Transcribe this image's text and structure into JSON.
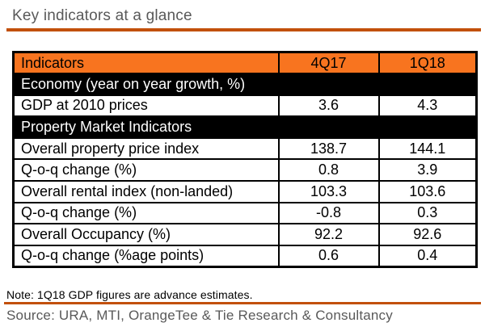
{
  "page": {
    "title": "Key indicators at a glance",
    "note": "Note: 1Q18 GDP figures are advance estimates.",
    "source": "Source: URA, MTI, OrangeTee & Tie Research & Consultancy"
  },
  "colors": {
    "header_orange": "#f8741f",
    "rule_orange": "#c2500b",
    "section_black": "#000000",
    "title_gray": "#595959"
  },
  "chart_data": {
    "type": "table",
    "title": "Key indicators at a glance",
    "columns": [
      "Indicators",
      "4Q17",
      "1Q18"
    ],
    "sections": [
      {
        "label": "Economy (year on year growth, %)",
        "rows": [
          {
            "label": "GDP at 2010 prices",
            "q4_2017": 3.6,
            "q1_2018": 4.3
          }
        ]
      },
      {
        "label": "Property Market Indicators",
        "rows": [
          {
            "label": "Overall property price index",
            "q4_2017": 138.7,
            "q1_2018": 144.1
          },
          {
            "label": "Q-o-q change (%)",
            "q4_2017": 0.8,
            "q1_2018": 3.9
          },
          {
            "label": "Overall rental index (non-landed)",
            "q4_2017": 103.3,
            "q1_2018": 103.6
          },
          {
            "label": "Q-o-q change (%)",
            "q4_2017": -0.8,
            "q1_2018": 0.3
          },
          {
            "label": "Overall Occupancy (%)",
            "q4_2017": 92.2,
            "q1_2018": 92.6
          },
          {
            "label": "Q-o-q change (%age points)",
            "q4_2017": 0.6,
            "q1_2018": 0.4
          }
        ]
      }
    ]
  },
  "table": {
    "headers": [
      "Indicators",
      "4Q17",
      "1Q18"
    ],
    "rows": [
      {
        "type": "section",
        "label": "Economy (year on year growth, %)"
      },
      {
        "type": "data",
        "label": "GDP at 2010 prices",
        "values": [
          "3.6",
          "4.3"
        ]
      },
      {
        "type": "section",
        "label": "Property Market Indicators"
      },
      {
        "type": "data",
        "label": "Overall property price index",
        "values": [
          "138.7",
          "144.1"
        ]
      },
      {
        "type": "data",
        "label": "Q-o-q change (%)",
        "values": [
          "0.8",
          "3.9"
        ]
      },
      {
        "type": "data",
        "label": "Overall rental index (non-landed)",
        "values": [
          "103.3",
          "103.6"
        ]
      },
      {
        "type": "data",
        "label": "Q-o-q change (%)",
        "values": [
          "-0.8",
          "0.3"
        ]
      },
      {
        "type": "data",
        "label": "Overall Occupancy (%)",
        "values": [
          "92.2",
          "92.6"
        ]
      },
      {
        "type": "data",
        "label": "Q-o-q change (%age points)",
        "values": [
          "0.6",
          "0.4"
        ]
      }
    ]
  }
}
